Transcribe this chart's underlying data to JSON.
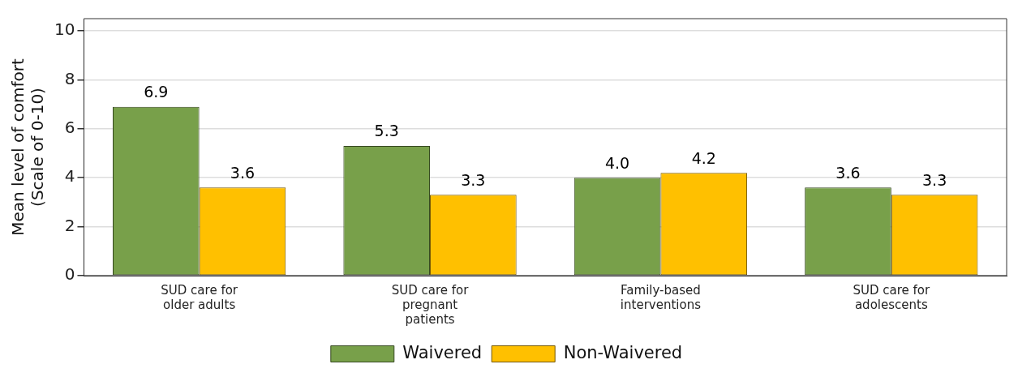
{
  "chart_data": {
    "type": "bar",
    "ylabel": "Mean level of comfort (Scale of 0-10)",
    "categories": [
      "SUD care for older adults",
      "SUD care for pregnant patients",
      "Family-based interventions",
      "SUD care for adolescents"
    ],
    "series": [
      {
        "name": "Waivered",
        "color": "#78a04a",
        "values": [
          6.9,
          5.3,
          4.0,
          3.6
        ],
        "value_labels": [
          "6.9",
          "5.3",
          "4.0",
          "3.6"
        ]
      },
      {
        "name": "Non-Waivered",
        "color": "#ffc000",
        "values": [
          3.6,
          3.3,
          4.2,
          3.3
        ],
        "value_labels": [
          "3.6",
          "3.3",
          "4.2",
          "3.3"
        ]
      }
    ],
    "ylim": [
      0,
      10.5
    ],
    "yticks": [
      0,
      2,
      4,
      6,
      8,
      10
    ],
    "grid": "y",
    "legend": "bottom"
  }
}
